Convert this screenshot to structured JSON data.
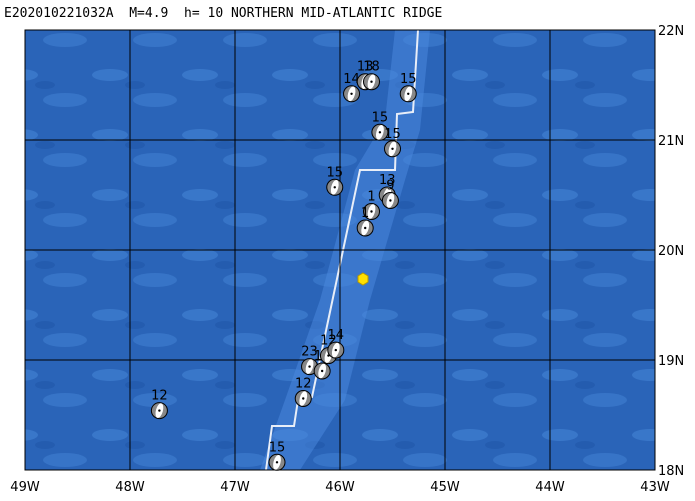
{
  "title": "E202010221032A  M=4.9  h= 10 NORTHERN MID-ATLANTIC RIDGE",
  "map": {
    "lonlim": [
      -49,
      -43
    ],
    "latlim": [
      18,
      22
    ],
    "lon_ticks": [
      {
        "value": -49,
        "label": "49W"
      },
      {
        "value": -48,
        "label": "48W"
      },
      {
        "value": -47,
        "label": "47W"
      },
      {
        "value": -46,
        "label": "46W"
      },
      {
        "value": -45,
        "label": "45W"
      },
      {
        "value": -44,
        "label": "44W"
      },
      {
        "value": -43,
        "label": "43W"
      }
    ],
    "lat_ticks": [
      {
        "value": 18,
        "label": "18N"
      },
      {
        "value": 19,
        "label": "19N"
      },
      {
        "value": 20,
        "label": "20N"
      },
      {
        "value": 21,
        "label": "21N"
      },
      {
        "value": 22,
        "label": "22N"
      }
    ],
    "events": [
      {
        "label": "12",
        "lon": -47.72,
        "lat": 18.54
      },
      {
        "label": "15",
        "lon": -46.6,
        "lat": 18.07
      },
      {
        "label": "12",
        "lon": -46.35,
        "lat": 18.65
      },
      {
        "label": "23",
        "lon": -46.29,
        "lat": 18.94
      },
      {
        "label": "12",
        "lon": -46.17,
        "lat": 18.9
      },
      {
        "label": "12",
        "lon": -46.11,
        "lat": 19.04
      },
      {
        "label": "14",
        "lon": -46.04,
        "lat": 19.09
      },
      {
        "label": "15",
        "lon": -46.05,
        "lat": 20.57
      },
      {
        "label": "14",
        "lon": -45.89,
        "lat": 21.42
      },
      {
        "label": "13",
        "lon": -45.76,
        "lat": 21.53
      },
      {
        "label": "18",
        "lon": -45.7,
        "lat": 21.53
      },
      {
        "label": "15",
        "lon": -45.35,
        "lat": 21.42
      },
      {
        "label": "15",
        "lon": -45.62,
        "lat": 21.07
      },
      {
        "label": "15",
        "lon": -45.5,
        "lat": 20.92
      },
      {
        "label": "13",
        "lon": -45.55,
        "lat": 20.5
      },
      {
        "label": "9",
        "lon": -45.52,
        "lat": 20.45
      },
      {
        "label": "1",
        "lon": -45.7,
        "lat": 20.35
      },
      {
        "label": "1",
        "lon": -45.76,
        "lat": 20.2
      }
    ]
  }
}
